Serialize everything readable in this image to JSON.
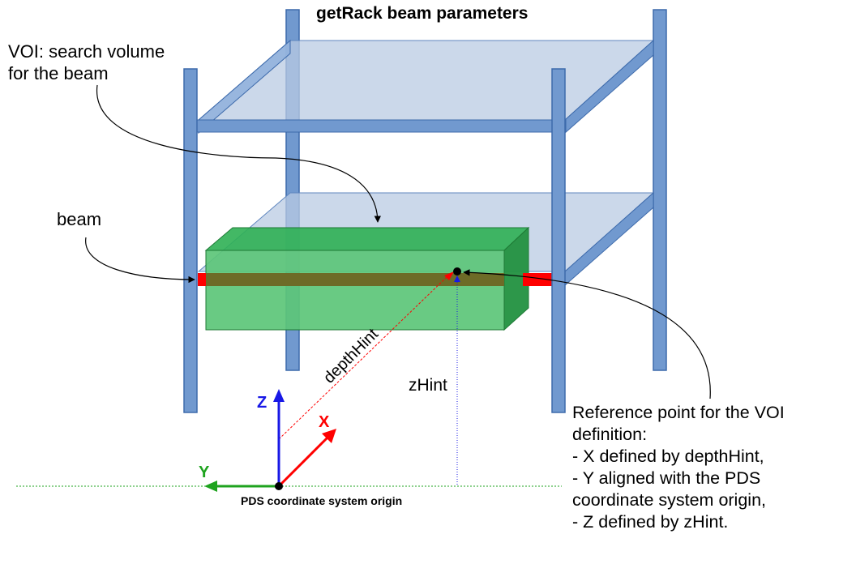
{
  "title": "getRack beam parameters",
  "labels": {
    "voi": "VOI: search volume\nfor the beam",
    "beam": "beam",
    "depth_hint": "depthHint",
    "z_hint": "zHint",
    "reference": "Reference point for the VOI\ndefinition:\n- X defined by depthHint,\n- Y aligned with the PDS\ncoordinate system origin,\n- Z defined by zHint.",
    "origin": "PDS coordinate system origin"
  },
  "axes": {
    "x": "X",
    "y": "Y",
    "z": "Z"
  },
  "colors": {
    "post_fill": "#7199cf",
    "post_stroke": "#3d6aab",
    "shelf_fill": "#b9cbe3",
    "voi_front": "#5cc678",
    "voi_top": "#2fb054",
    "voi_side": "#229140",
    "voi_stroke": "#1f7a36",
    "beam_band": "#6d6b27",
    "beam_red": "#ff0000",
    "axis_x": "#ff0000",
    "axis_y": "#1ea31e",
    "axis_z": "#1818e6"
  }
}
